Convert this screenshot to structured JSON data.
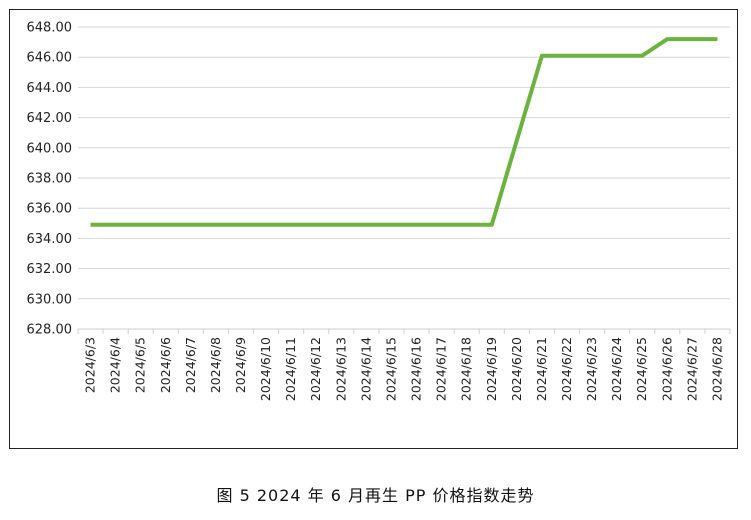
{
  "caption": "图 5  2024 年 6 月再生 PP 价格指数走势",
  "chart_data": {
    "type": "line",
    "title": "",
    "xlabel": "",
    "ylabel": "",
    "ylim": [
      628,
      648
    ],
    "ytick_step": 2,
    "ytick_decimals": 2,
    "grid": true,
    "legend": "none",
    "line_color": "#6ab43e",
    "categories": [
      "2024/6/3",
      "2024/6/4",
      "2024/6/5",
      "2024/6/6",
      "2024/6/7",
      "2024/6/8",
      "2024/6/9",
      "2024/6/10",
      "2024/6/11",
      "2024/6/12",
      "2024/6/13",
      "2024/6/14",
      "2024/6/15",
      "2024/6/16",
      "2024/6/17",
      "2024/6/18",
      "2024/6/19",
      "2024/6/20",
      "2024/6/21",
      "2024/6/22",
      "2024/6/23",
      "2024/6/24",
      "2024/6/25",
      "2024/6/26",
      "2024/6/27",
      "2024/6/28"
    ],
    "series": [
      {
        "values": [
          634.9,
          634.9,
          634.9,
          634.9,
          634.9,
          634.9,
          634.9,
          634.9,
          634.9,
          634.9,
          634.9,
          634.9,
          634.9,
          634.9,
          634.9,
          634.9,
          634.9,
          640.5,
          646.1,
          646.1,
          646.1,
          646.1,
          646.1,
          647.2,
          647.2,
          647.2
        ]
      }
    ]
  }
}
